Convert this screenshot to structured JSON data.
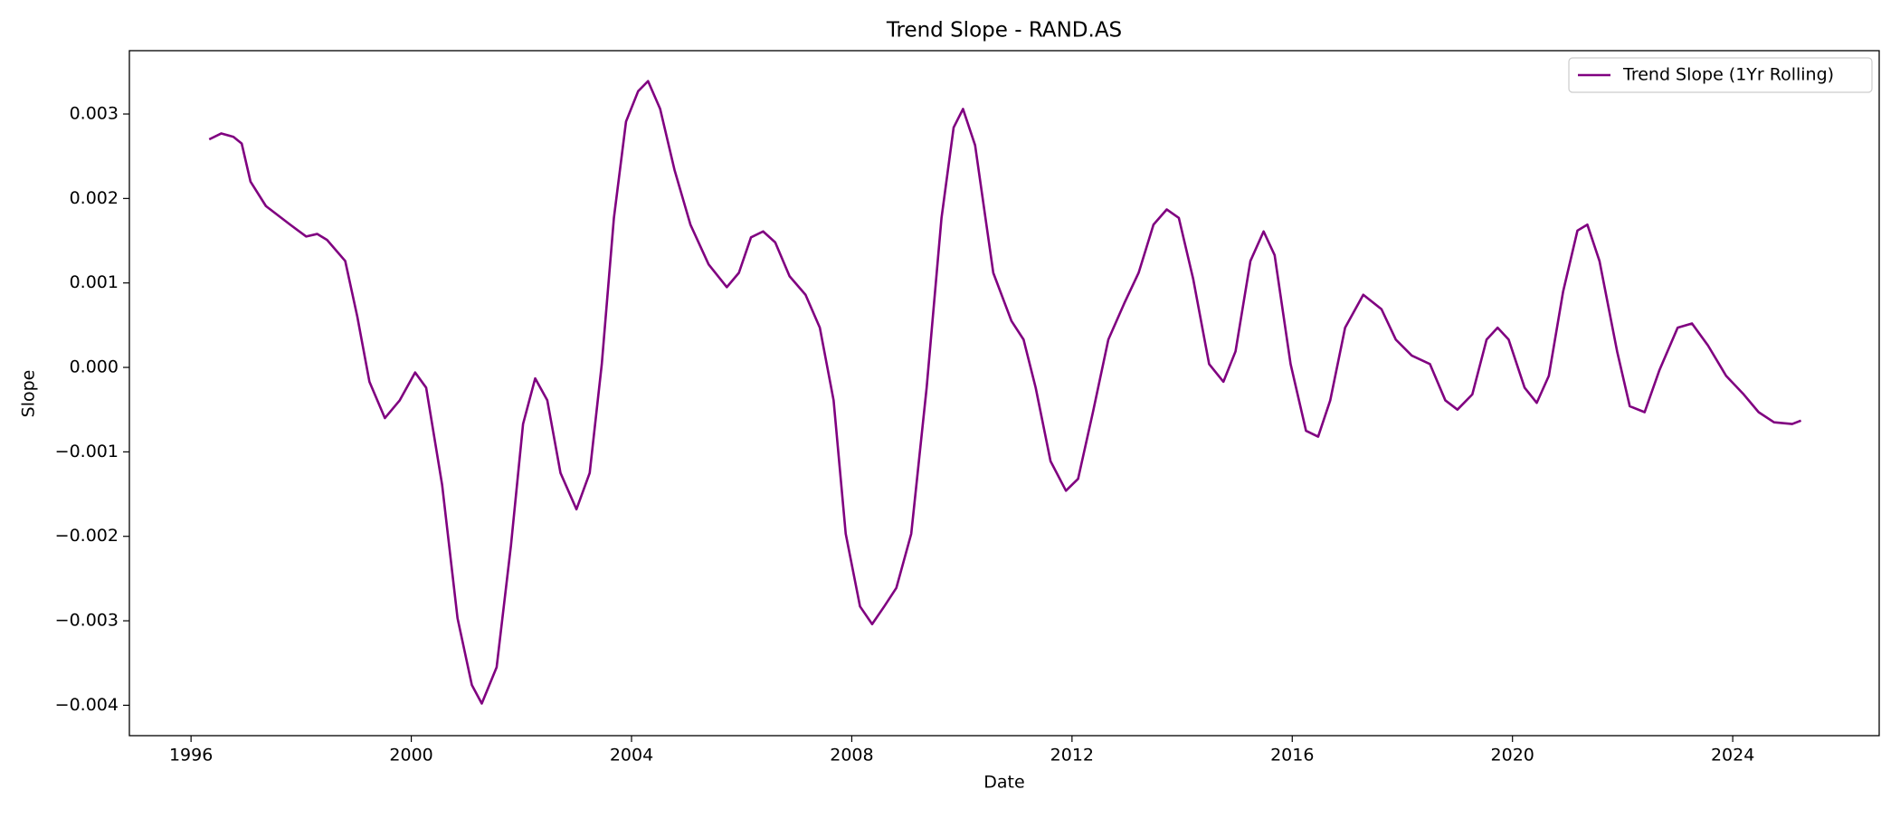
{
  "chart_data": {
    "type": "line",
    "title": "Trend Slope - RAND.AS",
    "xlabel": "Date",
    "ylabel": "Slope",
    "xlim": [
      1994.88,
      2026.66
    ],
    "xticks": [
      1996,
      2000,
      2004,
      2008,
      2012,
      2016,
      2020,
      2024
    ],
    "ylim": [
      -0.00436,
      0.00375
    ],
    "yticks": [
      {
        "value": -0.004,
        "label": "−0.004"
      },
      {
        "value": -0.003,
        "label": "−0.003"
      },
      {
        "value": -0.002,
        "label": "−0.002"
      },
      {
        "value": -0.001,
        "label": "−0.001"
      },
      {
        "value": 0,
        "label": "0.000"
      },
      0.001,
      0.002,
      0.003
    ],
    "legend": "upper right",
    "grid": false,
    "series": [
      {
        "name": "Trend Slope (1Yr Rolling)",
        "color": "#800080",
        "x": [
          1996.33,
          1996.55,
          1996.77,
          1996.92,
          1997.08,
          1997.36,
          1997.8,
          1998.09,
          1998.29,
          1998.47,
          1998.8,
          1999.02,
          1999.24,
          1999.52,
          1999.79,
          2000.07,
          2000.27,
          2000.56,
          2000.84,
          2001.1,
          2001.28,
          2001.55,
          2001.81,
          2002.03,
          2002.25,
          2002.47,
          2002.71,
          2003.0,
          2003.24,
          2003.46,
          2003.68,
          2003.9,
          2004.12,
          2004.3,
          2004.52,
          2004.78,
          2005.07,
          2005.4,
          2005.73,
          2005.95,
          2006.17,
          2006.39,
          2006.61,
          2006.87,
          2007.16,
          2007.42,
          2007.67,
          2007.89,
          2008.15,
          2008.37,
          2008.59,
          2008.81,
          2009.08,
          2009.36,
          2009.63,
          2009.85,
          2010.02,
          2010.24,
          2010.57,
          2010.9,
          2011.12,
          2011.34,
          2011.61,
          2011.89,
          2012.11,
          2012.38,
          2012.66,
          2012.95,
          2013.21,
          2013.48,
          2013.72,
          2013.94,
          2014.2,
          2014.49,
          2014.75,
          2014.97,
          2015.24,
          2015.48,
          2015.68,
          2015.97,
          2016.25,
          2016.47,
          2016.69,
          2016.96,
          2017.29,
          2017.62,
          2017.88,
          2018.17,
          2018.5,
          2018.78,
          2019.0,
          2019.27,
          2019.53,
          2019.73,
          2019.93,
          2020.22,
          2020.44,
          2020.66,
          2020.92,
          2021.18,
          2021.36,
          2021.58,
          2021.9,
          2022.13,
          2022.4,
          2022.67,
          2023.0,
          2023.26,
          2023.55,
          2023.88,
          2024.2,
          2024.47,
          2024.75,
          2025.08,
          2025.24
        ],
        "values": [
          0.0027,
          0.00277,
          0.00273,
          0.00265,
          0.0022,
          0.00191,
          0.00169,
          0.00155,
          0.00158,
          0.00151,
          0.00126,
          0.0006,
          -0.00017,
          -0.0006,
          -0.00039,
          -6e-05,
          -0.00024,
          -0.00139,
          -0.00297,
          -0.00376,
          -0.00398,
          -0.00355,
          -0.00211,
          -0.00067,
          -0.00013,
          -0.00039,
          -0.00125,
          -0.00168,
          -0.00125,
          4e-05,
          0.00177,
          0.00291,
          0.00327,
          0.00339,
          0.00306,
          0.00234,
          0.00169,
          0.00122,
          0.00095,
          0.00112,
          0.00154,
          0.00161,
          0.00148,
          0.00108,
          0.00086,
          0.00047,
          -0.00039,
          -0.00197,
          -0.00283,
          -0.00304,
          -0.00283,
          -0.00261,
          -0.00197,
          -0.00024,
          0.00177,
          0.00284,
          0.00306,
          0.00263,
          0.00112,
          0.00055,
          0.00033,
          -0.00024,
          -0.00111,
          -0.00146,
          -0.00132,
          -0.00053,
          0.00033,
          0.00076,
          0.00112,
          0.00169,
          0.00187,
          0.00177,
          0.00105,
          4e-05,
          -0.00017,
          0.00019,
          0.00126,
          0.00161,
          0.00133,
          4e-05,
          -0.00075,
          -0.00082,
          -0.00039,
          0.00047,
          0.00086,
          0.00069,
          0.00033,
          0.00014,
          4e-05,
          -0.00039,
          -0.0005,
          -0.00032,
          0.00033,
          0.00047,
          0.00033,
          -0.00024,
          -0.00042,
          -0.0001,
          0.0009,
          0.00162,
          0.00169,
          0.00126,
          0.00019,
          -0.00046,
          -0.00053,
          -3e-05,
          0.00047,
          0.00052,
          0.00026,
          -0.0001,
          -0.00032,
          -0.00053,
          -0.00065,
          -0.00067,
          -0.00063
        ]
      }
    ]
  }
}
